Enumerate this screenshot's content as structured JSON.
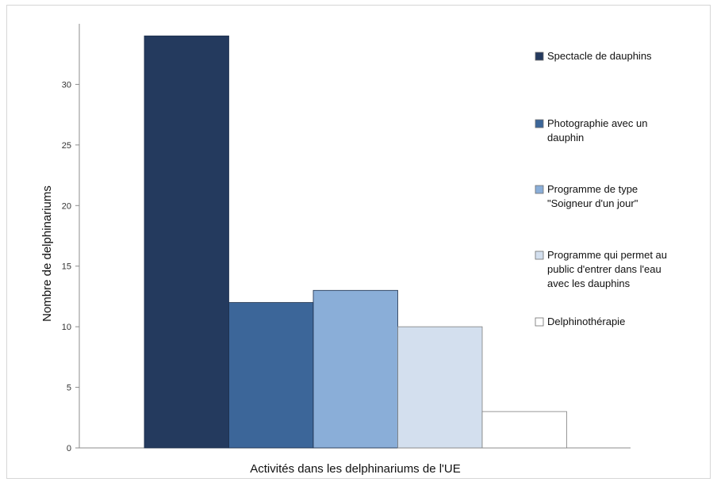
{
  "chart_data": {
    "type": "bar",
    "title": "",
    "xlabel": "Activités dans les delphinariums de l'UE",
    "ylabel": "Nombre de delphinariums",
    "ylim": [
      0,
      35
    ],
    "yticks": [
      0,
      5,
      10,
      15,
      20,
      25,
      30
    ],
    "grid": false,
    "legend_position": "right",
    "series": [
      {
        "name": "Spectacle de dauphins",
        "legend_lines": [
          "Spectacle de dauphins"
        ],
        "value": 34,
        "color": "#243a5e"
      },
      {
        "name": "Photographie avec un dauphin",
        "legend_lines": [
          "Photographie avec un",
          "dauphin"
        ],
        "value": 12,
        "color": "#3c6699"
      },
      {
        "name": "Programme de type \"Soigneur d'un jour\"",
        "legend_lines": [
          "Programme de type",
          "\"Soigneur d'un jour\""
        ],
        "value": 13,
        "color": "#8aaed8"
      },
      {
        "name": "Programme qui permet au public d'entrer dans l'eau avec les dauphins",
        "legend_lines": [
          "Programme qui permet au",
          "public d'entrer dans l'eau",
          "avec les dauphins"
        ],
        "value": 10,
        "color": "#d3dfee"
      },
      {
        "name": "Delphinothérapie",
        "legend_lines": [
          "Delphinothérapie"
        ],
        "value": 3,
        "color": "#ffffff"
      }
    ]
  }
}
